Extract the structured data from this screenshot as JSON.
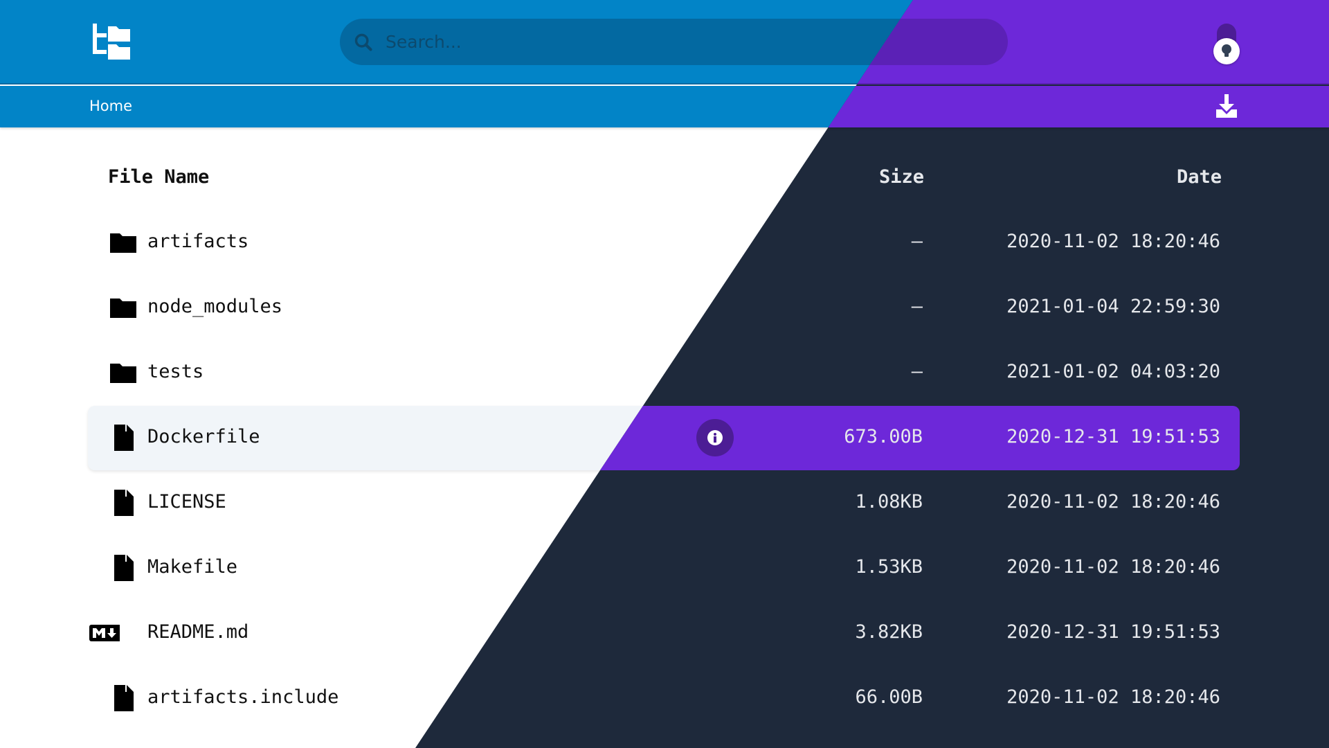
{
  "header": {
    "logo_icon": "file-tree-logo-icon",
    "search": {
      "placeholder": "Search...",
      "value": ""
    },
    "theme_toggle_icon": "lightbulb-icon"
  },
  "breadcrumb": {
    "items": [
      {
        "label": "Home"
      }
    ],
    "download_icon": "download-icon"
  },
  "colors": {
    "light_header": "#0284c7",
    "dark_header": "#6d28d9",
    "dark_bg": "#1e293b",
    "selected_row_dark": "#6d28d9"
  },
  "table": {
    "columns": {
      "name": "File Name",
      "size": "Size",
      "date": "Date"
    },
    "rows": [
      {
        "name": "artifacts",
        "size": "—",
        "date": "2020-11-02 18:20:46",
        "icon": "folder"
      },
      {
        "name": "node_modules",
        "size": "—",
        "date": "2021-01-04 22:59:30",
        "icon": "folder"
      },
      {
        "name": "tests",
        "size": "—",
        "date": "2021-01-02 04:03:20",
        "icon": "folder"
      },
      {
        "name": "Dockerfile",
        "size": "673.00B",
        "date": "2020-12-31 19:51:53",
        "icon": "file",
        "selected": true
      },
      {
        "name": "LICENSE",
        "size": "1.08KB",
        "date": "2020-11-02 18:20:46",
        "icon": "file"
      },
      {
        "name": "Makefile",
        "size": "1.53KB",
        "date": "2020-11-02 18:20:46",
        "icon": "file"
      },
      {
        "name": "README.md",
        "size": "3.82KB",
        "date": "2020-12-31 19:51:53",
        "icon": "markdown"
      },
      {
        "name": "artifacts.include",
        "size": "66.00B",
        "date": "2020-11-02 18:20:46",
        "icon": "file"
      }
    ]
  }
}
